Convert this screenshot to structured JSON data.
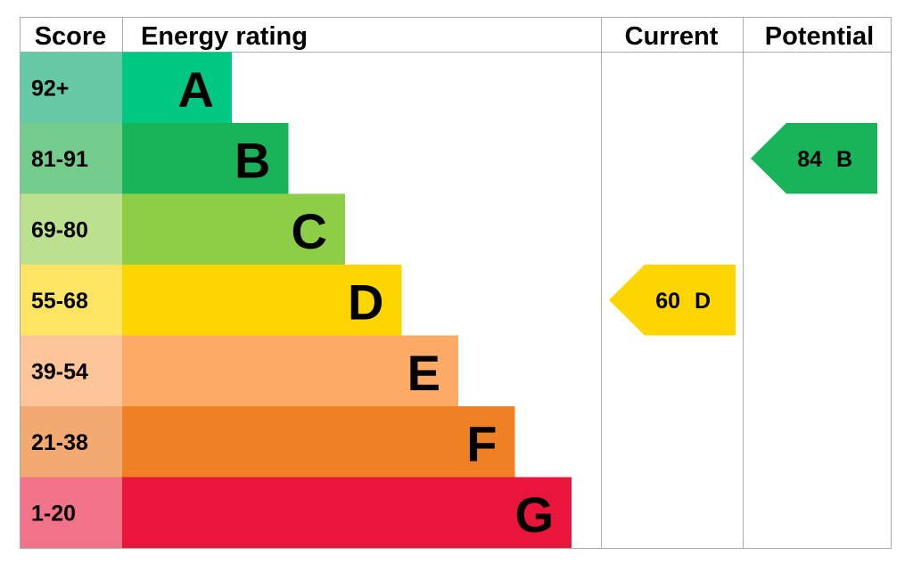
{
  "header": {
    "score": "Score",
    "rating": "Energy rating",
    "current": "Current",
    "potential": "Potential"
  },
  "bands": [
    {
      "score": "92+",
      "letter": "A",
      "color": "#00c781",
      "score_color": "#65c9a5"
    },
    {
      "score": "81-91",
      "letter": "B",
      "color": "#19b459",
      "score_color": "#73cc8c"
    },
    {
      "score": "69-80",
      "letter": "C",
      "color": "#8dce46",
      "score_color": "#bce18e"
    },
    {
      "score": "55-68",
      "letter": "D",
      "color": "#ffd500",
      "score_color": "#ffe463"
    },
    {
      "score": "39-54",
      "letter": "E",
      "color": "#fcaa65",
      "score_color": "#fdc69a"
    },
    {
      "score": "21-38",
      "letter": "F",
      "color": "#ef8023",
      "score_color": "#f3aa70"
    },
    {
      "score": "1-20",
      "letter": "G",
      "color": "#e9153b",
      "score_color": "#f07388"
    }
  ],
  "current": {
    "score": 60,
    "band": "D"
  },
  "potential": {
    "score": 84,
    "band": "B"
  }
}
